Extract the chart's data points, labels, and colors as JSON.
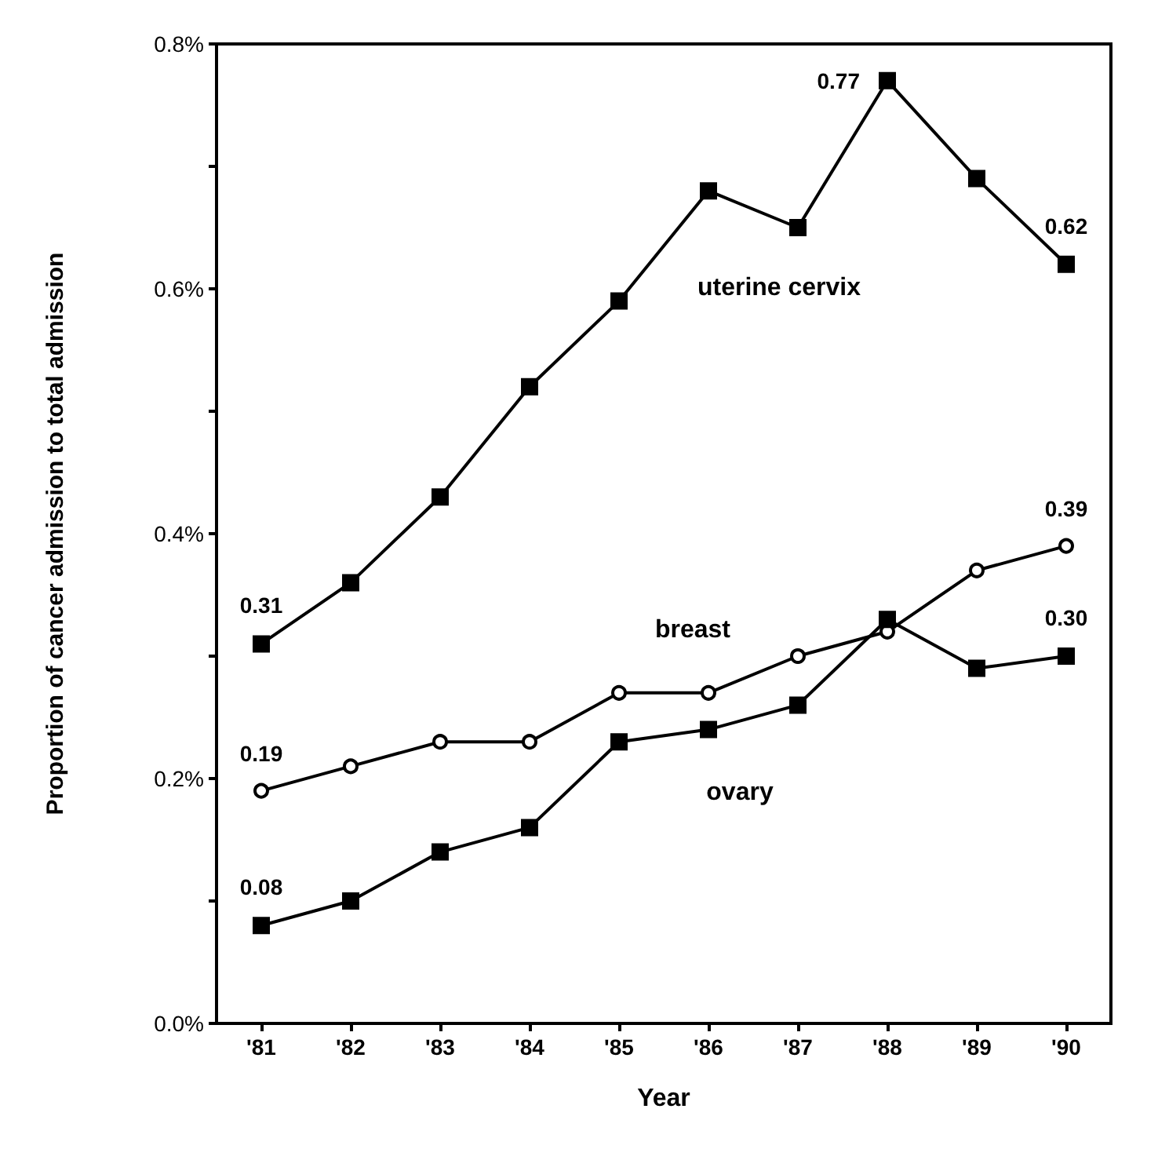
{
  "chart_data": {
    "type": "line",
    "xlabel": "Year",
    "ylabel": "Proportion of cancer admission to total admission",
    "categories": [
      "'81",
      "'82",
      "'83",
      "'84",
      "'85",
      "'86",
      "'87",
      "'88",
      "'89",
      "'90"
    ],
    "series": [
      {
        "name": "uterine cervix",
        "color": "#000000",
        "marker": "square",
        "values": [
          0.31,
          0.36,
          0.43,
          0.52,
          0.59,
          0.68,
          0.65,
          0.77,
          0.69,
          0.62
        ],
        "value_labels": [
          "0.31",
          null,
          null,
          null,
          null,
          null,
          null,
          "0.77",
          null,
          "0.62"
        ]
      },
      {
        "name": "breast",
        "color": "#000000",
        "marker": "circle",
        "values": [
          0.19,
          0.21,
          0.23,
          0.23,
          0.27,
          0.27,
          0.3,
          0.32,
          0.37,
          0.39
        ],
        "value_labels": [
          "0.19",
          null,
          null,
          null,
          null,
          null,
          null,
          null,
          null,
          "0.39"
        ]
      },
      {
        "name": "ovary",
        "color": "#000000",
        "marker": "square",
        "values": [
          0.08,
          0.1,
          0.14,
          0.16,
          0.23,
          0.24,
          0.26,
          0.33,
          0.29,
          0.3
        ],
        "value_labels": [
          "0.08",
          null,
          null,
          null,
          null,
          null,
          null,
          null,
          null,
          "0.30"
        ]
      }
    ],
    "ylim": [
      0,
      0.8
    ],
    "yticks": [
      {
        "value": 0,
        "label": "0.0%"
      },
      {
        "value": 0.1,
        "label": null
      },
      {
        "value": 0.2,
        "label": "0.2%"
      },
      {
        "value": 0.3,
        "label": null
      },
      {
        "value": 0.4,
        "label": "0.4%"
      },
      {
        "value": 0.5,
        "label": null
      },
      {
        "value": 0.6,
        "label": "0.6%"
      },
      {
        "value": 0.7,
        "label": null
      },
      {
        "value": 0.8,
        "label": "0.8%"
      }
    ],
    "grid": false,
    "legend": false,
    "line_style": "solid"
  }
}
